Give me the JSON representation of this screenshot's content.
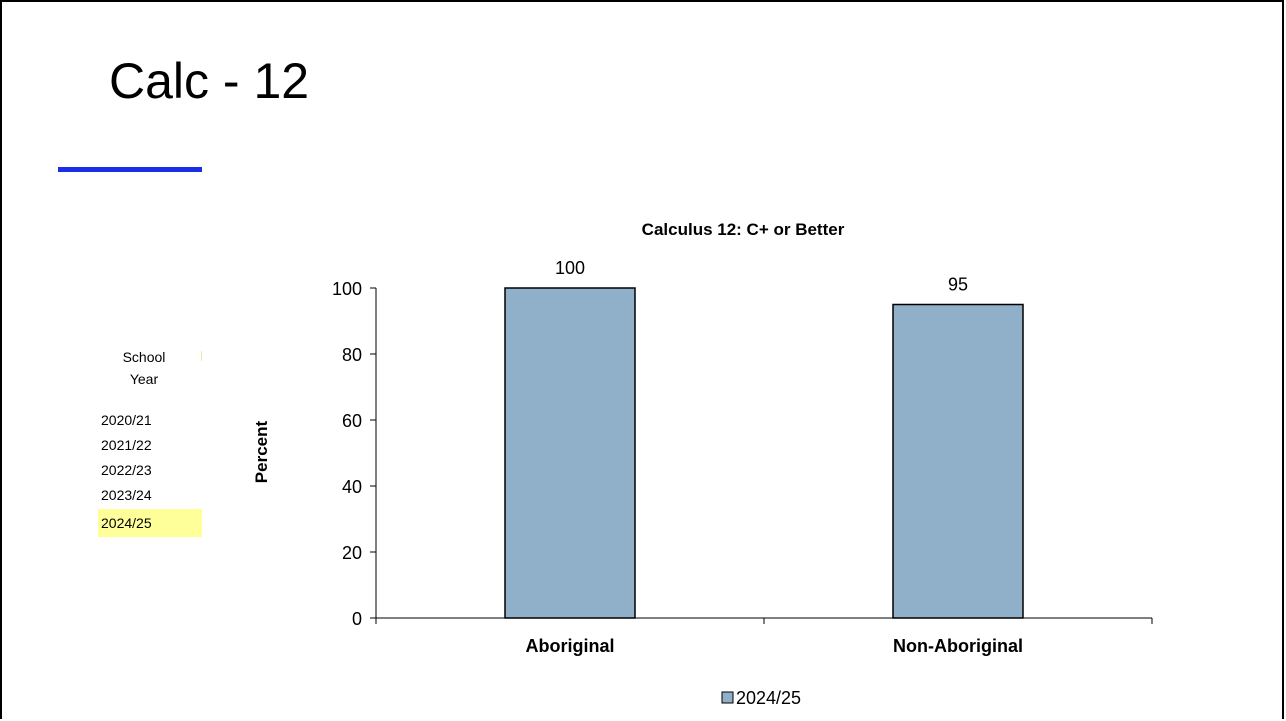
{
  "slide": {
    "title": "Calc - 12",
    "accent_color": "#1a2ee8"
  },
  "school_year_panel": {
    "header_line1": "School",
    "header_line2": "Year",
    "years": [
      "2020/21",
      "2021/22",
      "2022/23",
      "2023/24",
      "2024/25"
    ],
    "selected": "2024/25",
    "highlight_color": "#ffff99"
  },
  "chart_data": {
    "type": "bar",
    "title": "Calculus 12: C+ or Better",
    "ylabel": "Percent",
    "xlabel": "",
    "categories": [
      "Aboriginal",
      "Non-Aboriginal"
    ],
    "series": [
      {
        "name": "2024/25",
        "values": [
          100,
          95
        ],
        "color": "#8fb0c8"
      }
    ],
    "data_labels": [
      "100",
      "95"
    ],
    "ylim": [
      0,
      100
    ],
    "yticks": [
      0,
      20,
      40,
      60,
      80,
      100
    ],
    "grid": false,
    "legend": "bottom"
  }
}
